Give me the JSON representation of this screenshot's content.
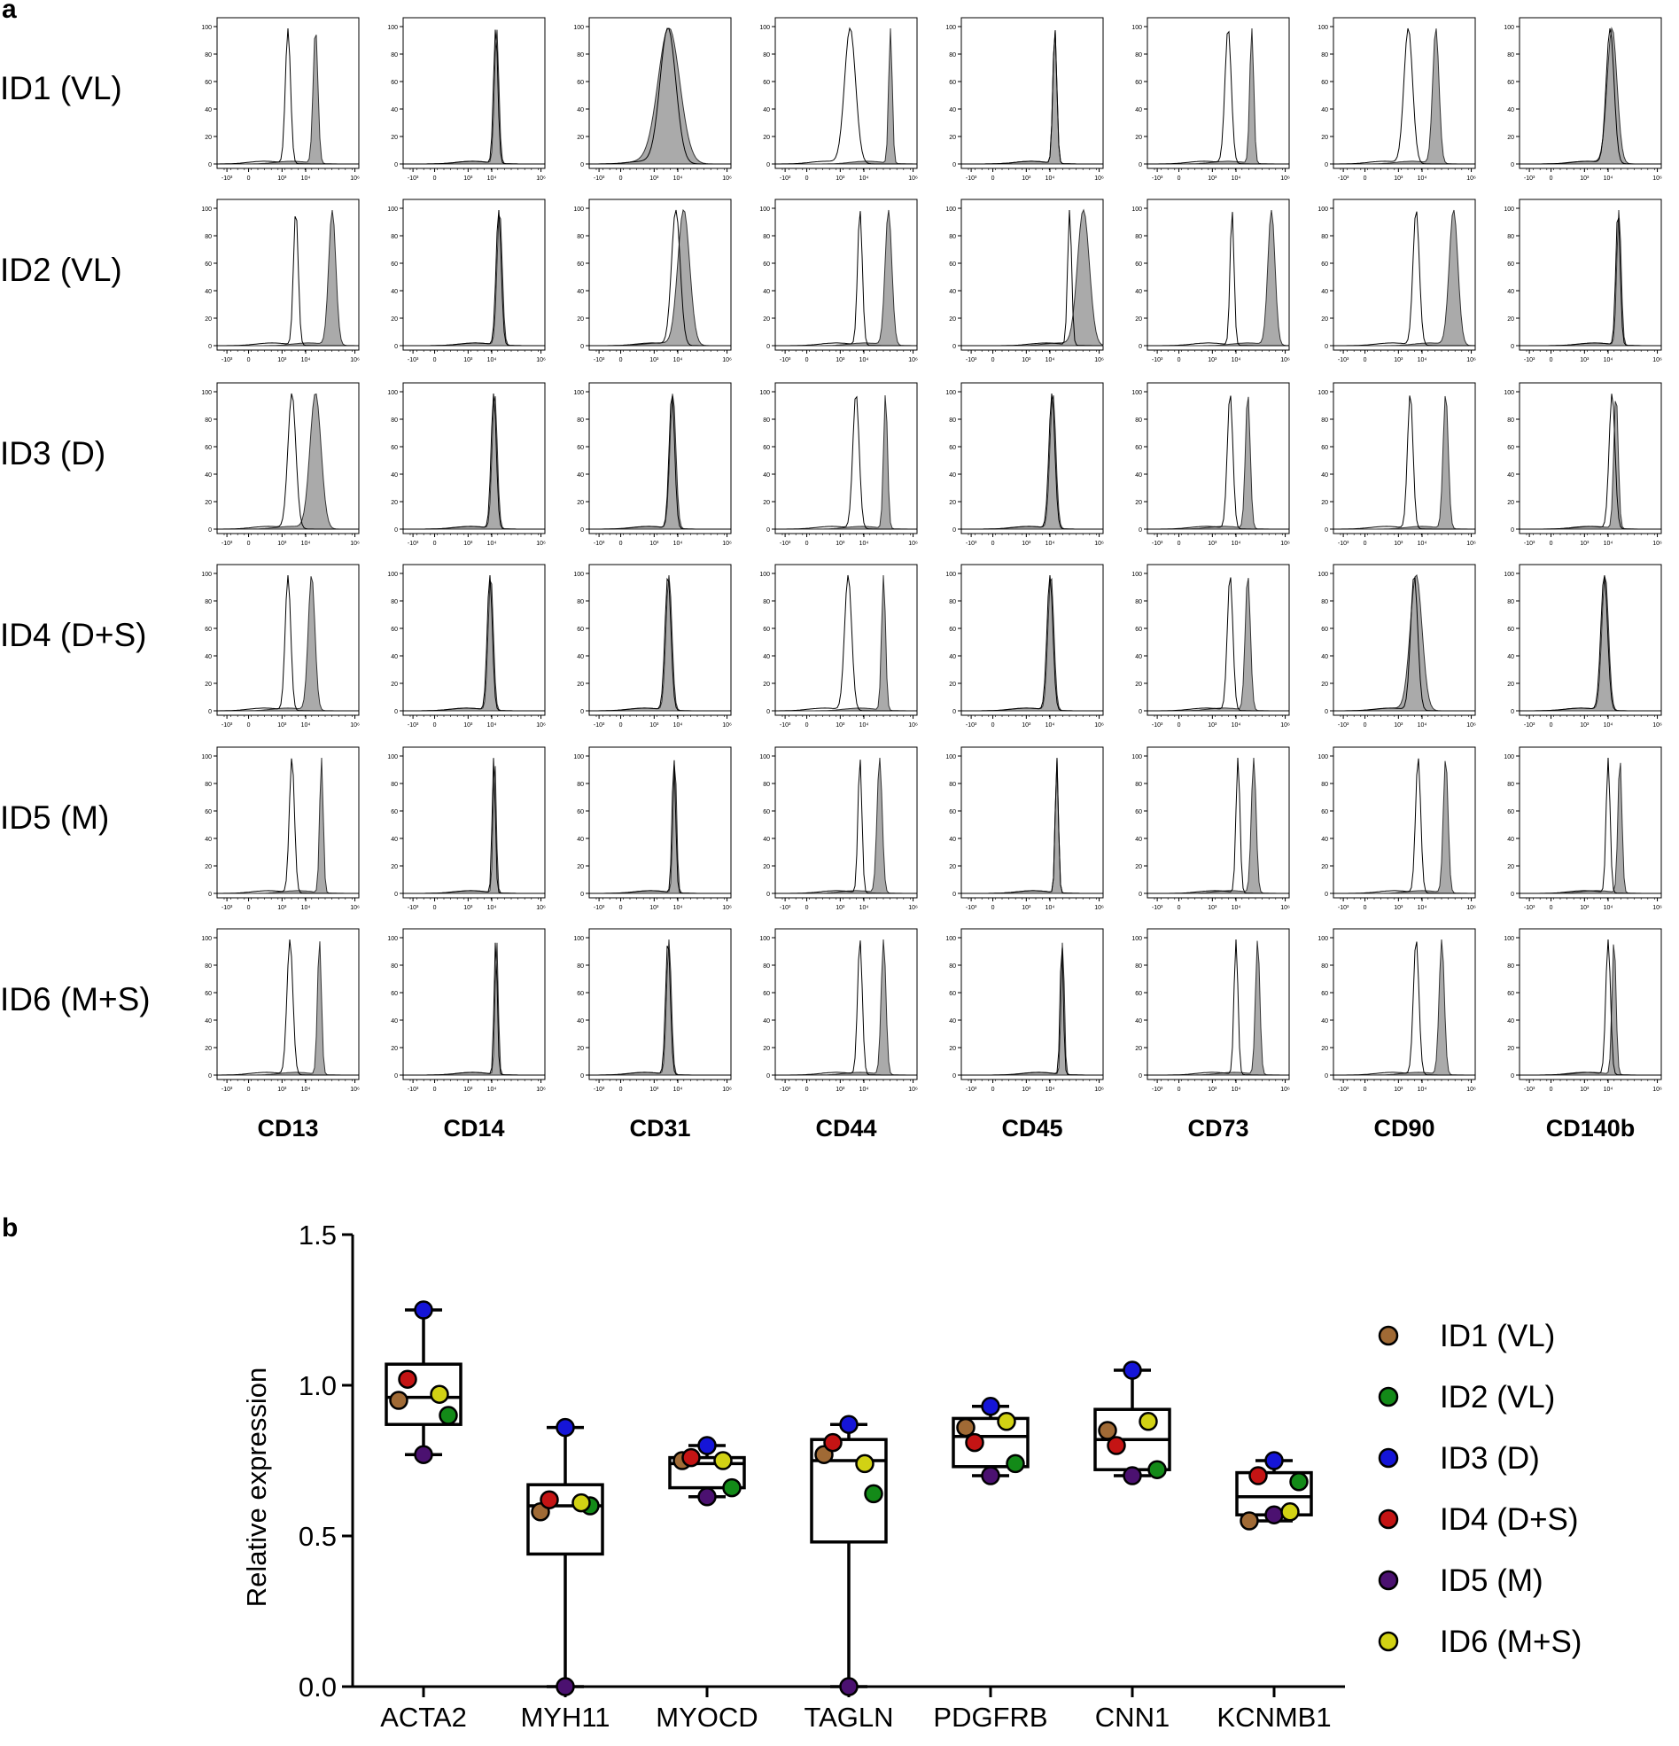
{
  "panel_a": {
    "letter": "a",
    "rows": [
      "ID1 (VL)",
      "ID2 (VL)",
      "ID3 (D)",
      "ID4 (D+S)",
      "ID5 (M)",
      "ID6 (M+S)"
    ],
    "columns": [
      "CD13",
      "CD14",
      "CD31",
      "CD44",
      "CD45",
      "CD73",
      "CD90",
      "CD140b"
    ],
    "y_ticks": [
      "0",
      "20",
      "40",
      "60",
      "80",
      "100"
    ],
    "x_ticks": [
      "-10³",
      "0",
      "10³",
      "10⁴",
      "10⁶"
    ],
    "colors": {
      "control_outline": "#000000",
      "stained_fill": "#aaaaaa",
      "stained_outline": "#333333"
    }
  },
  "panel_b": {
    "letter": "b",
    "legend_items": [
      {
        "label": "ID1 (VL)",
        "color": "#a06a35"
      },
      {
        "label": "ID2 (VL)",
        "color": "#138a18"
      },
      {
        "label": "ID3 (D)",
        "color": "#1515d8"
      },
      {
        "label": "ID4 (D+S)",
        "color": "#c41414"
      },
      {
        "label": "ID5 (M)",
        "color": "#4b1170"
      },
      {
        "label": "ID6 (M+S)",
        "color": "#d2d214"
      }
    ]
  },
  "chart_data": [
    {
      "type": "histogram-grid",
      "panel": "a",
      "rows": [
        "ID1 (VL)",
        "ID2 (VL)",
        "ID3 (D)",
        "ID4 (D+S)",
        "ID5 (M)",
        "ID6 (M+S)"
      ],
      "columns": [
        "CD13",
        "CD14",
        "CD31",
        "CD44",
        "CD45",
        "CD73",
        "CD90",
        "CD140b"
      ],
      "ylim": [
        0,
        100
      ],
      "x_scale": "biexponential",
      "series": [
        "isotype control (open)",
        "stained (filled)"
      ],
      "peaks_log10": [
        [
          [
            2.6,
            4.0,
            0.13,
            0.12
          ],
          [
            3.7,
            3.75,
            0.11,
            0.11
          ],
          [
            3.0,
            3.05,
            0.4,
            0.55
          ],
          [
            2.8,
            4.85,
            0.28,
            0.09
          ],
          [
            3.75,
            3.75,
            0.1,
            0.1
          ],
          [
            3.1,
            4.3,
            0.16,
            0.1
          ],
          [
            2.8,
            4.2,
            0.22,
            0.16
          ],
          [
            3.6,
            3.7,
            0.2,
            0.25
          ]
        ],
        [
          [
            3.0,
            4.85,
            0.12,
            0.18
          ],
          [
            3.85,
            3.9,
            0.13,
            0.13
          ],
          [
            3.4,
            3.8,
            0.22,
            0.3
          ],
          [
            3.3,
            4.75,
            0.12,
            0.17
          ],
          [
            4.5,
            5.2,
            0.1,
            0.3
          ],
          [
            3.3,
            5.3,
            0.1,
            0.18
          ],
          [
            3.2,
            5.1,
            0.16,
            0.22
          ],
          [
            4.0,
            4.05,
            0.11,
            0.11
          ]
        ],
        [
          [
            2.8,
            4.0,
            0.2,
            0.28
          ],
          [
            3.6,
            3.65,
            0.13,
            0.13
          ],
          [
            3.2,
            3.25,
            0.14,
            0.15
          ],
          [
            3.1,
            4.6,
            0.16,
            0.1
          ],
          [
            3.6,
            3.65,
            0.15,
            0.15
          ],
          [
            3.2,
            4.1,
            0.14,
            0.12
          ],
          [
            2.9,
            4.7,
            0.14,
            0.13
          ],
          [
            3.7,
            3.9,
            0.15,
            0.11
          ]
        ],
        [
          [
            2.6,
            3.8,
            0.14,
            0.17
          ],
          [
            3.4,
            3.45,
            0.13,
            0.13
          ],
          [
            3.0,
            3.05,
            0.15,
            0.15
          ],
          [
            2.7,
            4.5,
            0.18,
            0.1
          ],
          [
            3.5,
            3.55,
            0.15,
            0.15
          ],
          [
            3.2,
            4.1,
            0.14,
            0.13
          ],
          [
            3.1,
            3.2,
            0.18,
            0.3
          ],
          [
            3.3,
            3.35,
            0.17,
            0.17
          ]
        ],
        [
          [
            2.8,
            4.3,
            0.13,
            0.09
          ],
          [
            3.6,
            3.65,
            0.08,
            0.08
          ],
          [
            3.3,
            3.35,
            0.09,
            0.09
          ],
          [
            3.3,
            4.3,
            0.1,
            0.13
          ],
          [
            3.85,
            3.85,
            0.08,
            0.08
          ],
          [
            3.6,
            4.4,
            0.1,
            0.12
          ],
          [
            3.3,
            4.7,
            0.13,
            0.12
          ],
          [
            3.5,
            4.1,
            0.1,
            0.1
          ]
        ],
        [
          [
            2.7,
            4.2,
            0.15,
            0.1
          ],
          [
            3.7,
            3.75,
            0.08,
            0.08
          ],
          [
            3.0,
            3.05,
            0.12,
            0.12
          ],
          [
            3.3,
            4.5,
            0.12,
            0.12
          ],
          [
            4.1,
            4.15,
            0.08,
            0.08
          ],
          [
            3.5,
            4.6,
            0.1,
            0.11
          ],
          [
            3.2,
            4.5,
            0.14,
            0.13
          ],
          [
            3.5,
            3.8,
            0.12,
            0.1
          ]
        ]
      ]
    },
    {
      "type": "box",
      "panel": "b",
      "categories": [
        "ACTA2",
        "MYH11",
        "MYOCD",
        "TAGLN",
        "PDGFRB",
        "CNN1",
        "KCNMB1"
      ],
      "ylabel": "Relative expression",
      "ylim": [
        0,
        1.5
      ],
      "yticks": [
        "0.0",
        "0.5",
        "1.0",
        "1.5"
      ],
      "boxes": [
        {
          "min": 0.77,
          "q1": 0.87,
          "median": 0.96,
          "q3": 1.07,
          "max": 1.25
        },
        {
          "min": 0.0,
          "q1": 0.44,
          "median": 0.6,
          "q3": 0.67,
          "max": 0.86
        },
        {
          "min": 0.63,
          "q1": 0.66,
          "median": 0.74,
          "q3": 0.76,
          "max": 0.8
        },
        {
          "min": 0.0,
          "q1": 0.48,
          "median": 0.75,
          "q3": 0.82,
          "max": 0.87
        },
        {
          "min": 0.7,
          "q1": 0.73,
          "median": 0.83,
          "q3": 0.89,
          "max": 0.93
        },
        {
          "min": 0.7,
          "q1": 0.72,
          "median": 0.82,
          "q3": 0.92,
          "max": 1.05
        },
        {
          "min": 0.55,
          "q1": 0.57,
          "median": 0.63,
          "q3": 0.71,
          "max": 0.75
        }
      ],
      "series": [
        {
          "name": "ID1 (VL)",
          "values": [
            0.95,
            0.58,
            0.75,
            0.77,
            0.86,
            0.85,
            0.55
          ]
        },
        {
          "name": "ID2 (VL)",
          "values": [
            0.9,
            0.6,
            0.66,
            0.64,
            0.74,
            0.72,
            0.68
          ]
        },
        {
          "name": "ID3 (D)",
          "values": [
            1.25,
            0.86,
            0.8,
            0.87,
            0.93,
            1.05,
            0.75
          ]
        },
        {
          "name": "ID4 (D+S)",
          "values": [
            1.02,
            0.62,
            0.76,
            0.81,
            0.81,
            0.8,
            0.7
          ]
        },
        {
          "name": "ID5 (M)",
          "values": [
            0.77,
            0.0,
            0.63,
            0.0,
            0.7,
            0.7,
            0.57
          ]
        },
        {
          "name": "ID6 (M+S)",
          "values": [
            0.97,
            0.61,
            0.75,
            0.74,
            0.88,
            0.88,
            0.58
          ]
        }
      ]
    }
  ]
}
